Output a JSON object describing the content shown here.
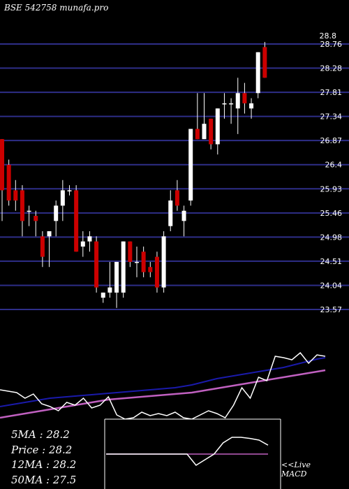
{
  "header": {
    "ticker": "BSE 542758",
    "site": "munafa.pro"
  },
  "stats": [
    {
      "label": "5MA",
      "value": "28.2"
    },
    {
      "label": "Price",
      "value": "28.2"
    },
    {
      "label": "12MA",
      "value": "28.2"
    },
    {
      "label": "50MA",
      "value": "27.5"
    }
  ],
  "macd_label": {
    "line1": "<<Live",
    "line2": "MACD"
  },
  "colors": {
    "background": "#000000",
    "grid": "#2e2e88",
    "up_candle": "#ffffff",
    "down_candle": "#cc0000",
    "ma_fast": "#1a1aaa",
    "ma_slow": "#c060c0",
    "indicator": "#ffffff",
    "macd_signal": "#c060c0"
  },
  "chart_data": {
    "type": "candlestick",
    "y_ticks": [
      "28.76",
      "28.28",
      "27.81",
      "27.34",
      "26.87",
      "26.4",
      "25.93",
      "25.46",
      "24.98",
      "24.51",
      "24.04",
      "23.57"
    ],
    "y_tick_top": "28.8",
    "ylim": [
      23.5,
      28.85
    ],
    "candles": [
      {
        "o": 26.9,
        "h": 26.9,
        "l": 25.3,
        "c": 25.9
      },
      {
        "o": 26.4,
        "h": 26.5,
        "l": 25.6,
        "c": 25.7
      },
      {
        "o": 25.9,
        "h": 26.1,
        "l": 25.5,
        "c": 25.7
      },
      {
        "o": 25.9,
        "h": 26.0,
        "l": 25.0,
        "c": 25.3
      },
      {
        "o": 25.5,
        "h": 25.6,
        "l": 25.2,
        "c": 25.5
      },
      {
        "o": 25.4,
        "h": 25.5,
        "l": 25.0,
        "c": 25.3
      },
      {
        "o": 25.0,
        "h": 25.1,
        "l": 24.4,
        "c": 24.6
      },
      {
        "o": 25.0,
        "h": 25.1,
        "l": 24.4,
        "c": 25.1
      },
      {
        "o": 25.3,
        "h": 25.7,
        "l": 25.0,
        "c": 25.6
      },
      {
        "o": 25.6,
        "h": 26.1,
        "l": 25.3,
        "c": 25.9
      },
      {
        "o": 25.9,
        "h": 26.0,
        "l": 25.8,
        "c": 25.9
      },
      {
        "o": 25.9,
        "h": 26.0,
        "l": 24.7,
        "c": 24.7
      },
      {
        "o": 24.8,
        "h": 25.1,
        "l": 24.6,
        "c": 24.9
      },
      {
        "o": 24.9,
        "h": 25.1,
        "l": 24.7,
        "c": 25.0
      },
      {
        "o": 24.9,
        "h": 25.0,
        "l": 23.9,
        "c": 24.0
      },
      {
        "o": 23.8,
        "h": 23.9,
        "l": 23.7,
        "c": 23.9
      },
      {
        "o": 23.9,
        "h": 24.5,
        "l": 23.8,
        "c": 24.0
      },
      {
        "o": 23.9,
        "h": 24.5,
        "l": 23.6,
        "c": 24.5
      },
      {
        "o": 23.9,
        "h": 24.9,
        "l": 23.8,
        "c": 24.9
      },
      {
        "o": 24.9,
        "h": 24.9,
        "l": 24.4,
        "c": 24.5
      },
      {
        "o": 24.5,
        "h": 24.8,
        "l": 24.2,
        "c": 24.5
      },
      {
        "o": 24.7,
        "h": 24.8,
        "l": 24.2,
        "c": 24.3
      },
      {
        "o": 24.4,
        "h": 24.5,
        "l": 24.2,
        "c": 24.3
      },
      {
        "o": 24.6,
        "h": 24.7,
        "l": 23.9,
        "c": 24.0
      },
      {
        "o": 24.0,
        "h": 25.1,
        "l": 23.9,
        "c": 25.0
      },
      {
        "o": 25.2,
        "h": 25.9,
        "l": 25.1,
        "c": 25.7
      },
      {
        "o": 25.9,
        "h": 26.1,
        "l": 25.5,
        "c": 25.6
      },
      {
        "o": 25.3,
        "h": 25.6,
        "l": 25.0,
        "c": 25.5
      },
      {
        "o": 25.7,
        "h": 27.1,
        "l": 25.6,
        "c": 27.1
      },
      {
        "o": 27.1,
        "h": 27.8,
        "l": 26.9,
        "c": 26.9
      },
      {
        "o": 26.9,
        "h": 27.8,
        "l": 26.9,
        "c": 27.2
      },
      {
        "o": 27.3,
        "h": 27.3,
        "l": 26.7,
        "c": 26.8
      },
      {
        "o": 26.8,
        "h": 27.5,
        "l": 26.6,
        "c": 27.5
      },
      {
        "o": 27.6,
        "h": 27.8,
        "l": 27.3,
        "c": 27.6
      },
      {
        "o": 27.6,
        "h": 27.7,
        "l": 27.2,
        "c": 27.6
      },
      {
        "o": 27.5,
        "h": 28.1,
        "l": 27.0,
        "c": 27.8
      },
      {
        "o": 27.8,
        "h": 28.0,
        "l": 27.4,
        "c": 27.6
      },
      {
        "o": 27.5,
        "h": 27.7,
        "l": 27.3,
        "c": 27.6
      },
      {
        "o": 27.8,
        "h": 28.6,
        "l": 27.7,
        "c": 28.6
      },
      {
        "o": 28.7,
        "h": 28.8,
        "l": 28.1,
        "c": 28.1
      }
    ],
    "ma_fast_line": [
      0.18,
      0.2,
      0.22,
      0.24,
      0.26,
      0.28,
      0.3,
      0.31,
      0.32,
      0.33,
      0.34,
      0.35,
      0.36,
      0.37,
      0.38,
      0.39,
      0.4,
      0.41,
      0.42,
      0.43,
      0.44,
      0.45,
      0.47,
      0.49,
      0.52,
      0.55,
      0.58,
      0.6,
      0.62,
      0.64,
      0.66,
      0.68,
      0.7,
      0.72,
      0.74,
      0.77,
      0.8,
      0.83,
      0.86,
      0.88
    ],
    "ma_slow_line": [
      0.02,
      0.04,
      0.06,
      0.08,
      0.1,
      0.12,
      0.14,
      0.16,
      0.18,
      0.2,
      0.22,
      0.24,
      0.26,
      0.28,
      0.29,
      0.3,
      0.31,
      0.32,
      0.33,
      0.34,
      0.35,
      0.36,
      0.37,
      0.38,
      0.4,
      0.42,
      0.44,
      0.46,
      0.48,
      0.5,
      0.52,
      0.54,
      0.56,
      0.58,
      0.6,
      0.62,
      0.64,
      0.66,
      0.68,
      0.7
    ],
    "indicator_line": [
      0.42,
      0.4,
      0.38,
      0.3,
      0.36,
      0.22,
      0.18,
      0.12,
      0.24,
      0.2,
      0.3,
      0.16,
      0.2,
      0.32,
      0.06,
      0.0,
      0.02,
      0.1,
      0.05,
      0.08,
      0.05,
      0.1,
      0.02,
      0.0,
      0.06,
      0.12,
      0.08,
      0.02,
      0.2,
      0.45,
      0.3,
      0.6,
      0.55,
      0.9,
      0.88,
      0.85,
      0.95,
      0.8,
      0.92,
      0.9
    ],
    "macd_line": [
      0.5,
      0.5,
      0.5,
      0.5,
      0.5,
      0.5,
      0.5,
      0.5,
      0.5,
      0.5,
      0.3,
      0.4,
      0.5,
      0.7,
      0.8,
      0.8,
      0.78,
      0.75,
      0.66
    ],
    "macd_signal_line": [
      0.5,
      0.5,
      0.5,
      0.5,
      0.5,
      0.5,
      0.5,
      0.5,
      0.5,
      0.5,
      0.5,
      0.5,
      0.5,
      0.5,
      0.5,
      0.5,
      0.5,
      0.5,
      0.5
    ]
  }
}
